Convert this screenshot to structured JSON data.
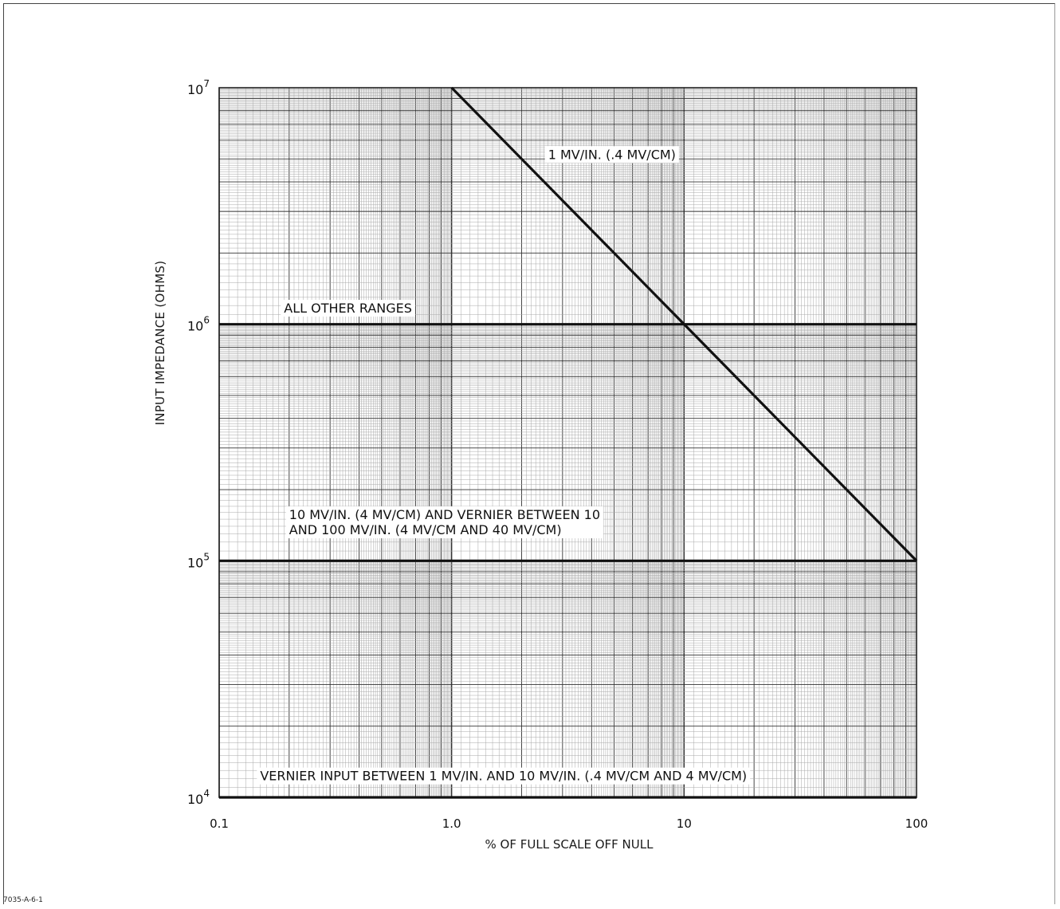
{
  "doc_id": "7035-A-6-1",
  "chart_data": {
    "type": "line",
    "xlabel": "% OF FULL SCALE OFF NULL",
    "ylabel": "INPUT IMPEDANCE (OHMS)",
    "x_scale": "log",
    "y_scale": "log",
    "xlim": [
      0.1,
      100
    ],
    "ylim": [
      10000,
      10000000
    ],
    "grid": true,
    "x_ticks": [
      {
        "value": 0.1,
        "label": "0.1"
      },
      {
        "value": 1,
        "label": "1.0"
      },
      {
        "value": 10,
        "label": "10"
      },
      {
        "value": 100,
        "label": "100"
      }
    ],
    "y_ticks": [
      {
        "value": 10000,
        "base": "10",
        "exp": "4"
      },
      {
        "value": 100000,
        "base": "10",
        "exp": "5"
      },
      {
        "value": 1000000,
        "base": "10",
        "exp": "6"
      },
      {
        "value": 10000000,
        "base": "10",
        "exp": "7"
      }
    ],
    "series": [
      {
        "name": "1 MV/IN. (.4 MV/CM)",
        "x": [
          1.0,
          100
        ],
        "y": [
          10000000,
          100000
        ]
      },
      {
        "name": "ALL OTHER RANGES",
        "x": [
          0.1,
          100
        ],
        "y": [
          1000000,
          1000000
        ]
      },
      {
        "name": "10 MV/IN. (4 MV/CM) AND VERNIER BETWEEN 10 AND 100 MV/IN. (4 MV/CM AND 40 MV/CM)",
        "x": [
          0.1,
          100
        ],
        "y": [
          100000,
          100000
        ]
      },
      {
        "name": "VERNIER INPUT BETWEEN 1 MV/IN. AND 10 MV/IN. (.4 MV/CM AND 4 MV/CM)",
        "x": [
          0.1,
          100
        ],
        "y": [
          10000,
          10000
        ]
      }
    ],
    "annotations": [
      {
        "lines": [
          "1 MV/IN. (.4 MV/CM)"
        ],
        "x": 2.6,
        "y": 5000000
      },
      {
        "lines": [
          "ALL OTHER RANGES"
        ],
        "x": 0.19,
        "y": 1120000
      },
      {
        "lines": [
          "10 MV/IN. (4 MV/CM) AND VERNIER BETWEEN 10",
          "AND 100 MV/IN. (4 MV/CM AND 40 MV/CM)"
        ],
        "x": 0.2,
        "y": 150000
      },
      {
        "lines": [
          "VERNIER INPUT BETWEEN 1 MV/IN. AND 10 MV/IN. (.4 MV/CM AND 4 MV/CM)"
        ],
        "x": 0.15,
        "y": 11800
      }
    ]
  }
}
